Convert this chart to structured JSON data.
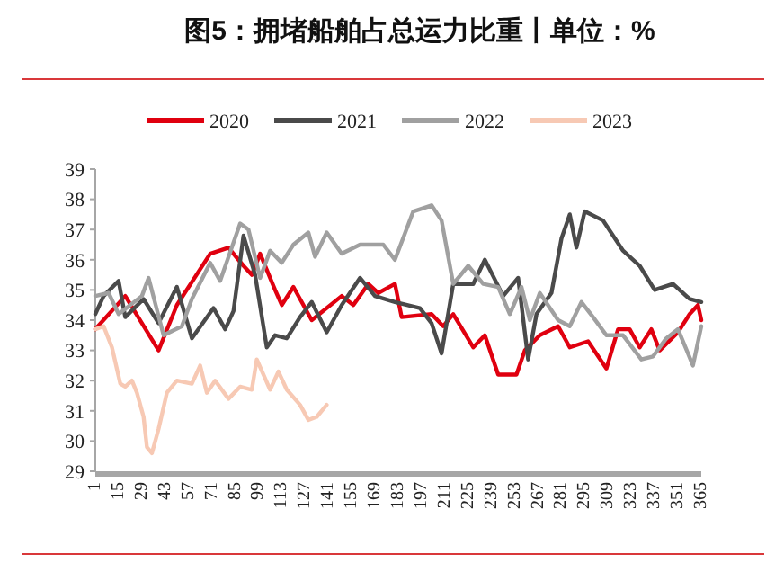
{
  "chart_data": {
    "type": "line",
    "title": "图5：拥堵船舶占总运力比重丨单位：%",
    "xlim": [
      1,
      365
    ],
    "xticks": [
      1,
      15,
      29,
      43,
      57,
      71,
      85,
      99,
      113,
      127,
      141,
      155,
      169,
      183,
      197,
      211,
      225,
      239,
      253,
      267,
      281,
      295,
      309,
      323,
      337,
      351,
      365
    ],
    "ylim": [
      29,
      39
    ],
    "yticks": [
      29,
      30,
      31,
      32,
      33,
      34,
      35,
      36,
      37,
      38,
      39
    ],
    "grid": false,
    "legend": "top",
    "marker": "none",
    "line_style": "solid",
    "series": [
      {
        "name": "2020",
        "color": "#e0000f",
        "x": [
          1,
          19,
          39,
          50,
          70,
          81,
          90,
          95,
          100,
          109,
          113,
          120,
          131,
          149,
          156,
          165,
          171,
          181,
          185,
          203,
          210,
          216,
          228,
          235,
          243,
          254,
          259,
          268,
          279,
          286,
          297,
          308,
          315,
          322,
          328,
          335,
          340,
          351,
          358,
          363,
          365
        ],
        "values": [
          33.7,
          34.8,
          33.0,
          34.5,
          36.2,
          36.4,
          35.8,
          35.5,
          36.2,
          35.0,
          34.5,
          35.1,
          34.0,
          34.8,
          34.5,
          35.2,
          34.9,
          35.2,
          34.1,
          34.2,
          33.8,
          34.2,
          33.1,
          33.5,
          32.2,
          32.2,
          33.0,
          33.5,
          33.8,
          33.1,
          33.3,
          32.4,
          33.7,
          33.7,
          33.1,
          33.7,
          33.0,
          33.6,
          34.2,
          34.5,
          34.0
        ]
      },
      {
        "name": "2021",
        "color": "#4a4a4a",
        "x": [
          1,
          6,
          15,
          19,
          30,
          39,
          50,
          59,
          72,
          79,
          84,
          90,
          97,
          104,
          109,
          116,
          124,
          131,
          140,
          149,
          160,
          169,
          181,
          196,
          203,
          209,
          216,
          228,
          235,
          246,
          255,
          261,
          266,
          275,
          281,
          286,
          290,
          295,
          306,
          318,
          328,
          337,
          348,
          358,
          365
        ],
        "values": [
          34.2,
          34.8,
          35.3,
          34.1,
          34.7,
          33.9,
          35.1,
          33.4,
          34.4,
          33.7,
          34.3,
          36.8,
          35.5,
          33.1,
          33.5,
          33.4,
          34.1,
          34.6,
          33.6,
          34.5,
          35.4,
          34.8,
          34.6,
          34.4,
          33.9,
          32.9,
          35.2,
          35.2,
          36.0,
          34.8,
          35.4,
          32.7,
          34.2,
          34.9,
          36.7,
          37.5,
          36.4,
          37.6,
          37.3,
          36.3,
          35.8,
          35.0,
          35.2,
          34.7,
          34.6
        ]
      },
      {
        "name": "2022",
        "color": "#a0a0a0",
        "x": [
          1,
          9,
          15,
          29,
          33,
          42,
          53,
          59,
          70,
          76,
          88,
          93,
          100,
          106,
          113,
          120,
          129,
          133,
          140,
          149,
          160,
          174,
          181,
          192,
          203,
          209,
          216,
          225,
          234,
          243,
          250,
          257,
          262,
          268,
          279,
          286,
          293,
          300,
          308,
          318,
          329,
          336,
          344,
          351,
          360,
          365
        ],
        "values": [
          34.8,
          34.9,
          34.2,
          34.8,
          35.4,
          33.5,
          33.8,
          34.7,
          35.9,
          35.3,
          37.2,
          37.0,
          35.4,
          36.3,
          35.9,
          36.5,
          36.9,
          36.1,
          36.9,
          36.2,
          36.5,
          36.5,
          36.0,
          37.6,
          37.8,
          37.3,
          35.2,
          35.8,
          35.2,
          35.1,
          34.2,
          35.1,
          34.0,
          34.9,
          34.0,
          33.8,
          34.6,
          34.1,
          33.5,
          33.5,
          32.7,
          32.8,
          33.4,
          33.7,
          32.5,
          33.8
        ]
      },
      {
        "name": "2023",
        "color": "#f7c9b4",
        "x": [
          1,
          6,
          11,
          16,
          19,
          23,
          26,
          30,
          32,
          35,
          39,
          44,
          50,
          59,
          64,
          68,
          73,
          81,
          88,
          95,
          98,
          106,
          111,
          116,
          124,
          129,
          134,
          140
        ],
        "values": [
          33.7,
          33.8,
          33.1,
          31.9,
          31.8,
          32.0,
          31.6,
          30.8,
          29.8,
          29.6,
          30.4,
          31.6,
          32.0,
          31.9,
          32.5,
          31.6,
          32.0,
          31.4,
          31.8,
          31.7,
          32.7,
          31.7,
          32.3,
          31.7,
          31.2,
          30.7,
          30.8,
          31.2
        ]
      }
    ]
  }
}
